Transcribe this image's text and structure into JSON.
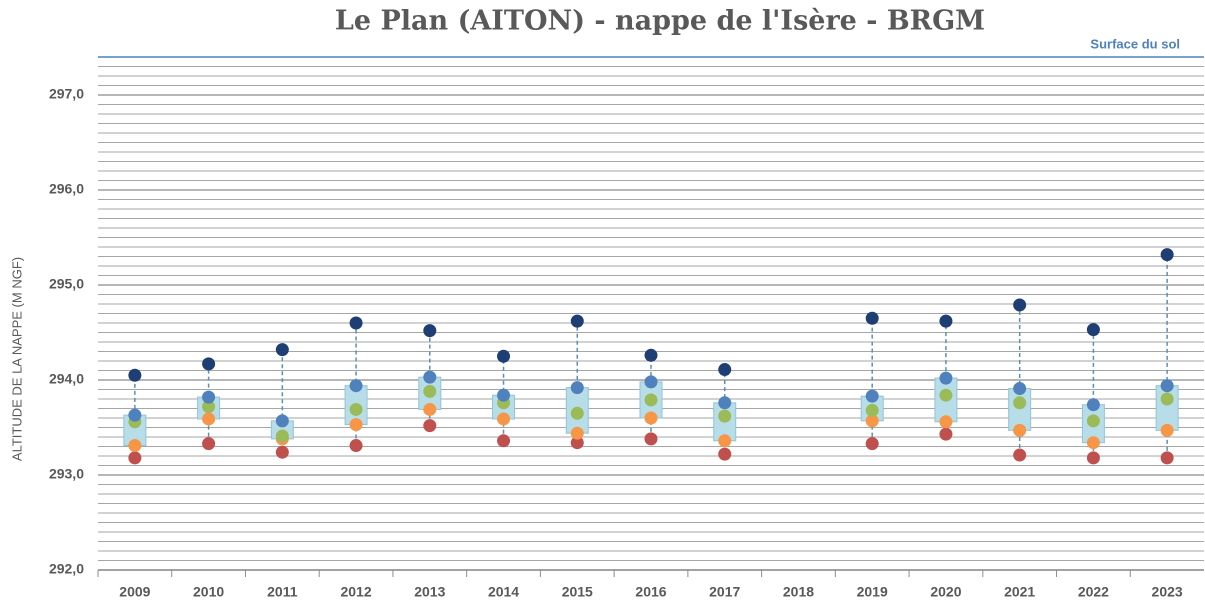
{
  "chart_data": {
    "type": "box-points",
    "title": "Le Plan (AITON) - nappe de l'Isère - BRGM",
    "y_label": "ALTITUDE DE LA NAPPE (M NGF)",
    "annotation": {
      "label": "Surface du sol",
      "value": 297.4,
      "color": "#4f81bd"
    },
    "categories": [
      "2009",
      "2010",
      "2011",
      "2012",
      "2013",
      "2014",
      "2015",
      "2016",
      "2017",
      "2018",
      "2019",
      "2020",
      "2021",
      "2022",
      "2023"
    ],
    "series": [
      {
        "color": "#1f3f74",
        "values": [
          294.05,
          294.17,
          294.32,
          294.6,
          294.52,
          294.25,
          294.62,
          294.26,
          294.11,
          null,
          294.65,
          294.62,
          294.79,
          294.53,
          295.32
        ]
      },
      {
        "color": "#4f81bd",
        "values": [
          293.63,
          293.82,
          293.57,
          293.94,
          294.03,
          293.84,
          293.92,
          293.98,
          293.76,
          null,
          293.83,
          294.02,
          293.91,
          293.74,
          293.94
        ]
      },
      {
        "color": "#9bbb59",
        "values": [
          293.56,
          293.72,
          293.41,
          293.69,
          293.88,
          293.76,
          293.65,
          293.79,
          293.62,
          null,
          293.68,
          293.84,
          293.76,
          293.57,
          293.8
        ]
      },
      {
        "color": "#f79646",
        "values": [
          293.31,
          293.59,
          293.38,
          293.53,
          293.69,
          293.59,
          293.44,
          293.6,
          293.36,
          null,
          293.57,
          293.56,
          293.47,
          293.34,
          293.47
        ]
      },
      {
        "color": "#c0504d",
        "values": [
          293.18,
          293.33,
          293.24,
          293.31,
          293.52,
          293.36,
          293.34,
          293.38,
          293.22,
          null,
          293.33,
          293.43,
          293.21,
          293.18,
          293.18
        ]
      }
    ],
    "box_color": "#b7dde8",
    "ylim": [
      292,
      297.5
    ],
    "yticks": [
      {
        "value": 292,
        "label": "292,0"
      },
      {
        "value": 293,
        "label": "293,0"
      },
      {
        "value": 294,
        "label": "294,0"
      },
      {
        "value": 295,
        "label": "295,0"
      },
      {
        "value": 296,
        "label": "296,0"
      },
      {
        "value": 297,
        "label": "297,0"
      }
    ],
    "minor_yticks": [
      292.1,
      292.2,
      292.3,
      292.4,
      292.5,
      292.6,
      292.7,
      292.8,
      292.9,
      293.1,
      293.2,
      293.3,
      293.4,
      293.5,
      293.6,
      293.7,
      293.8,
      293.9,
      294.1,
      294.2,
      294.3,
      294.4,
      294.5,
      294.6,
      294.7,
      294.8,
      294.9,
      295.1,
      295.2,
      295.3,
      295.4,
      295.5,
      295.6,
      295.7,
      295.8,
      295.9,
      296.1,
      296.2,
      296.3,
      296.4,
      296.5,
      296.6,
      296.7,
      296.8,
      296.9,
      297.1,
      297.2,
      297.3
    ],
    "grid": true
  }
}
